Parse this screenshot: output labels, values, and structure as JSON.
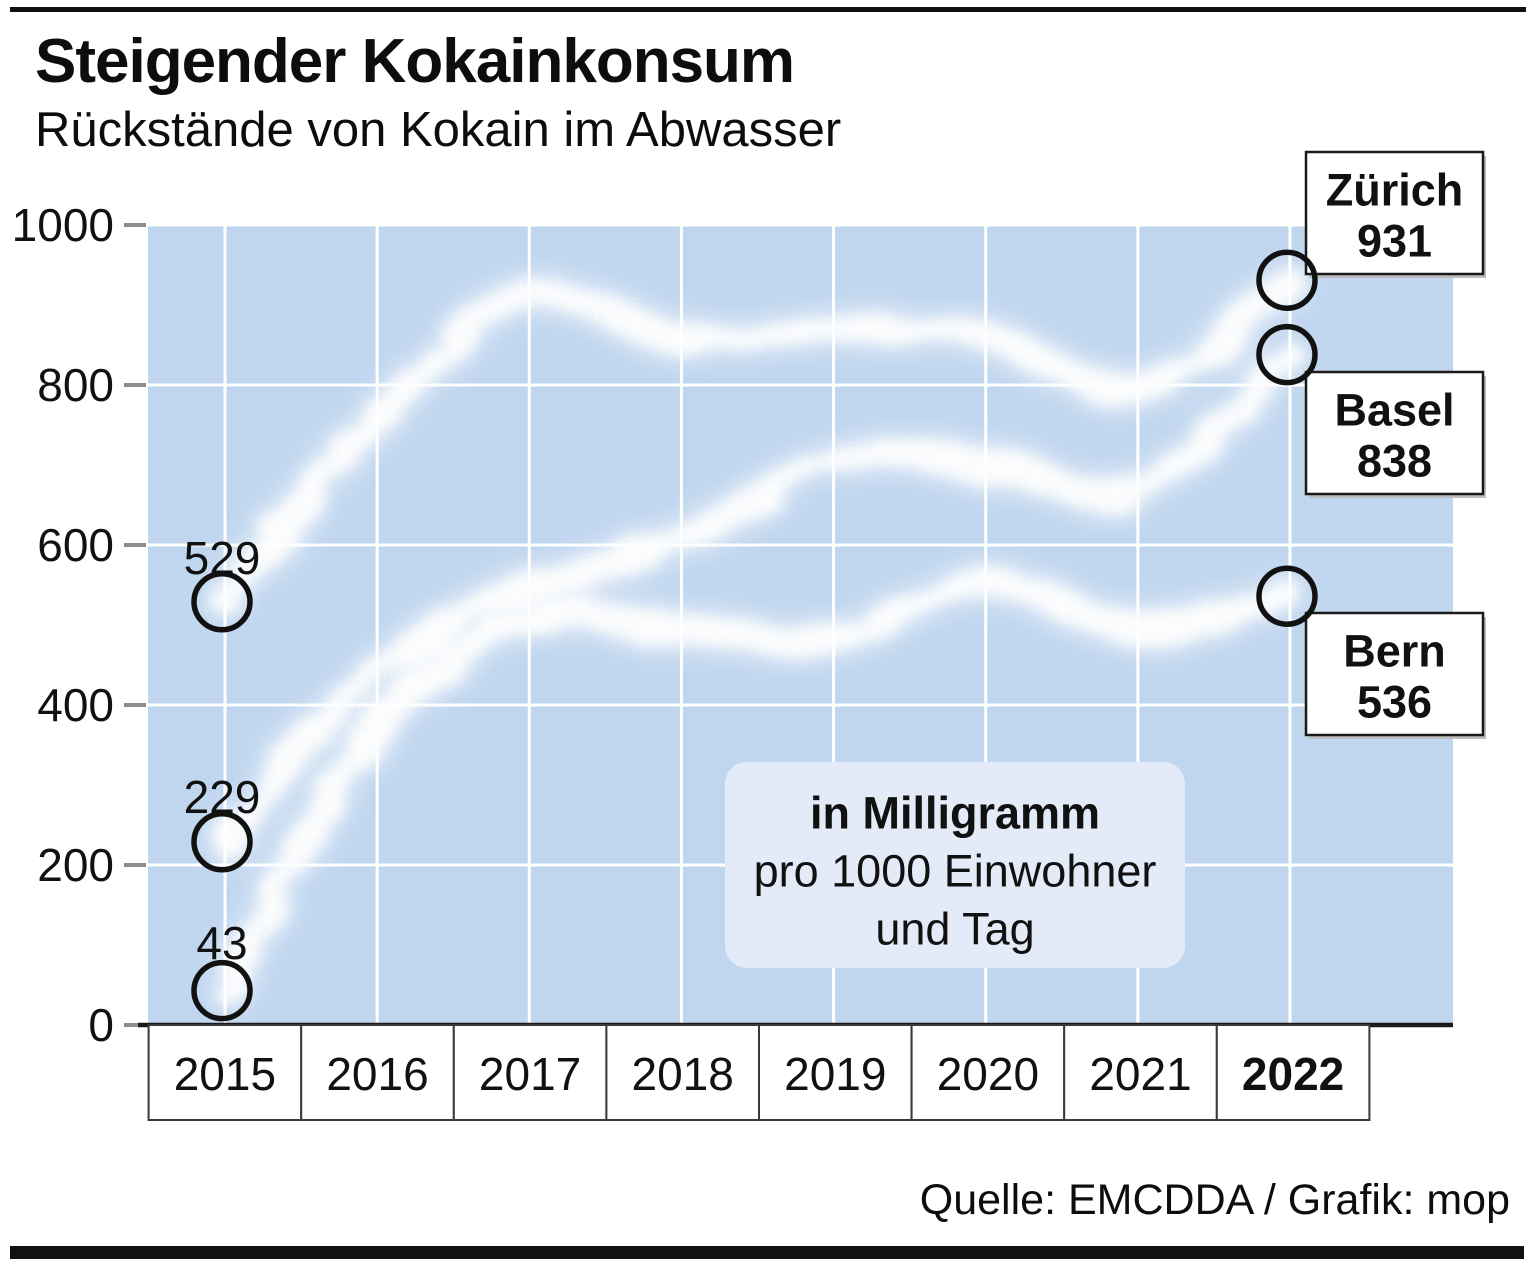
{
  "header": {
    "title": "Steigender Kokainkonsum",
    "subtitle": "Rückstände von Kokain im Abwasser"
  },
  "unit_note": {
    "line1": "in Milligramm",
    "line2": "pro 1000 Einwohner",
    "line3": "und Tag"
  },
  "source": "Quelle: EMCDDA / Grafik: mop",
  "start_labels": {
    "zurich": "529",
    "basel": "229",
    "bern": "43"
  },
  "annotations": {
    "zurich": {
      "city": "Zürich",
      "value": "931"
    },
    "basel": {
      "city": "Basel",
      "value": "838"
    },
    "bern": {
      "city": "Bern",
      "value": "536"
    }
  },
  "chart_data": {
    "type": "line",
    "title": "Steigender Kokainkonsum",
    "subtitle": "Rückstände von Kokain im Abwasser",
    "unit": "in Milligramm pro 1000 Einwohner und Tag",
    "categories": [
      "2015",
      "2016",
      "2017",
      "2018",
      "2019",
      "2020",
      "2021",
      "2022"
    ],
    "series": [
      {
        "name": "Zürich",
        "values": [
          529,
          760,
          915,
          855,
          870,
          860,
          795,
          931
        ]
      },
      {
        "name": "Basel",
        "values": [
          229,
          445,
          545,
          605,
          710,
          700,
          670,
          838
        ]
      },
      {
        "name": "Bern",
        "values": [
          43,
          370,
          505,
          495,
          480,
          555,
          495,
          536
        ]
      }
    ],
    "ylim": [
      0,
      1000
    ],
    "yticks": [
      0,
      200,
      400,
      600,
      800,
      1000
    ],
    "ytick_labels": [
      "0",
      "200",
      "400",
      "600",
      "800",
      "1000"
    ],
    "grid": true,
    "legend_position": "right-endpoint-labels",
    "plot_background": "#c0d6ef",
    "line_color": "#ffffff",
    "gridline_color": "#ffffff"
  }
}
